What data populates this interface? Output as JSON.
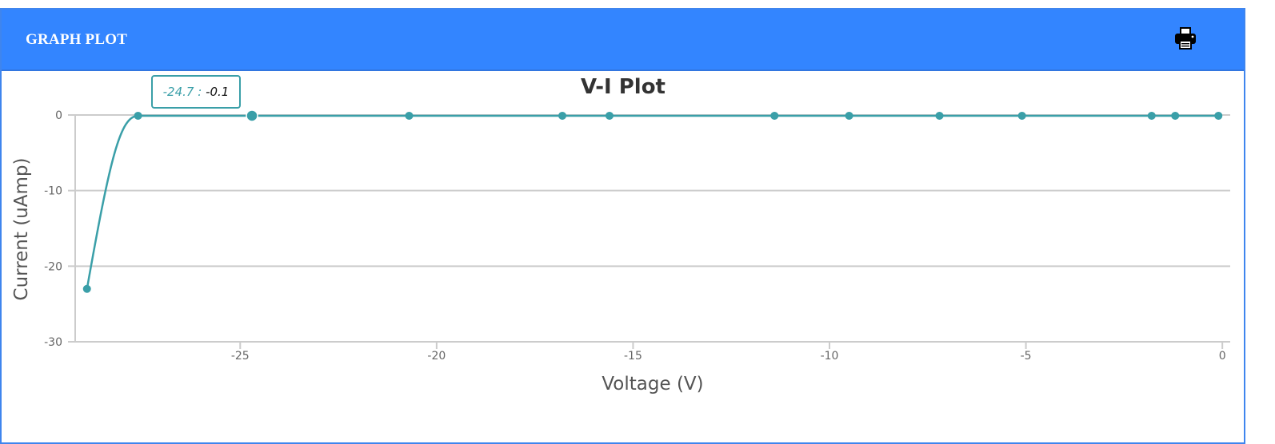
{
  "panel": {
    "title": "GRAPH PLOT",
    "print_icon": "printer-icon"
  },
  "colors": {
    "header_bg": "#3385ff",
    "series": "#3a9fa8",
    "grid": "#cccccc"
  },
  "tooltip": {
    "x_label": "-24.7",
    "separator": ":",
    "y_label": "-0.1"
  },
  "chart_data": {
    "type": "line",
    "title": "V-I Plot",
    "xlabel": "Voltage (V)",
    "ylabel": "Current (uAmp)",
    "xlim": [
      -29.2,
      0.2
    ],
    "ylim": [
      -30,
      0
    ],
    "xticks": [
      -25,
      -20,
      -15,
      -10,
      -5,
      0
    ],
    "yticks": [
      0,
      -10,
      -20,
      -30
    ],
    "grid": "horizontal",
    "legend": "none",
    "highlighted_point": {
      "x": -24.7,
      "y": -0.1
    },
    "series": [
      {
        "points": [
          {
            "x": -28.9,
            "y": -23.0
          },
          {
            "x": -27.6,
            "y": -0.1
          },
          {
            "x": -24.7,
            "y": -0.1
          },
          {
            "x": -20.7,
            "y": -0.1
          },
          {
            "x": -16.8,
            "y": -0.1
          },
          {
            "x": -15.6,
            "y": -0.1
          },
          {
            "x": -11.4,
            "y": -0.1
          },
          {
            "x": -9.5,
            "y": -0.1
          },
          {
            "x": -7.2,
            "y": -0.1
          },
          {
            "x": -5.1,
            "y": -0.1
          },
          {
            "x": -1.8,
            "y": -0.1
          },
          {
            "x": -1.2,
            "y": -0.1
          },
          {
            "x": -0.1,
            "y": -0.1
          }
        ]
      }
    ]
  }
}
